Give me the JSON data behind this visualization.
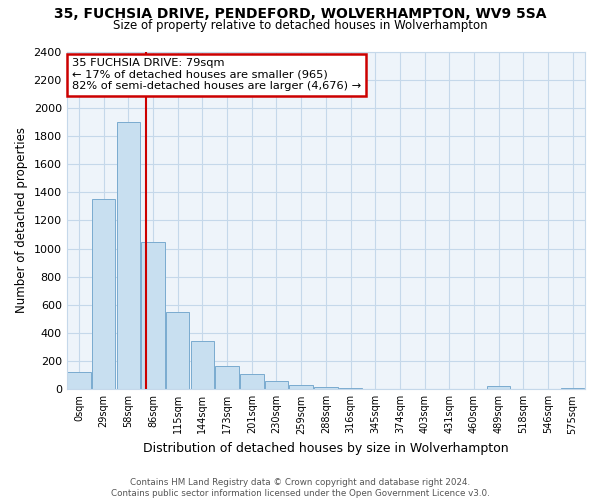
{
  "title": "35, FUCHSIA DRIVE, PENDEFORD, WOLVERHAMPTON, WV9 5SA",
  "subtitle": "Size of property relative to detached houses in Wolverhampton",
  "xlabel": "Distribution of detached houses by size in Wolverhampton",
  "ylabel": "Number of detached properties",
  "bar_color": "#c8dff0",
  "bar_edge_color": "#7aabcf",
  "bin_labels": [
    "0sqm",
    "29sqm",
    "58sqm",
    "86sqm",
    "115sqm",
    "144sqm",
    "173sqm",
    "201sqm",
    "230sqm",
    "259sqm",
    "288sqm",
    "316sqm",
    "345sqm",
    "374sqm",
    "403sqm",
    "431sqm",
    "460sqm",
    "489sqm",
    "518sqm",
    "546sqm",
    "575sqm"
  ],
  "bar_heights": [
    125,
    1350,
    1900,
    1050,
    550,
    340,
    165,
    110,
    60,
    30,
    15,
    10,
    5,
    0,
    0,
    0,
    0,
    20,
    0,
    0,
    10
  ],
  "ylim": [
    0,
    2400
  ],
  "yticks": [
    0,
    200,
    400,
    600,
    800,
    1000,
    1200,
    1400,
    1600,
    1800,
    2000,
    2200,
    2400
  ],
  "vline_x": 2.73,
  "vline_color": "#cc0000",
  "annotation_line1": "35 FUCHSIA DRIVE: 79sqm",
  "annotation_line2": "← 17% of detached houses are smaller (965)",
  "annotation_line3": "82% of semi-detached houses are larger (4,676) →",
  "annotation_box_edge": "#cc0000",
  "footnote": "Contains HM Land Registry data © Crown copyright and database right 2024.\nContains public sector information licensed under the Open Government Licence v3.0.",
  "background_color": "#ffffff",
  "plot_bg_color": "#eef4fa",
  "grid_color": "#c5d8ea"
}
